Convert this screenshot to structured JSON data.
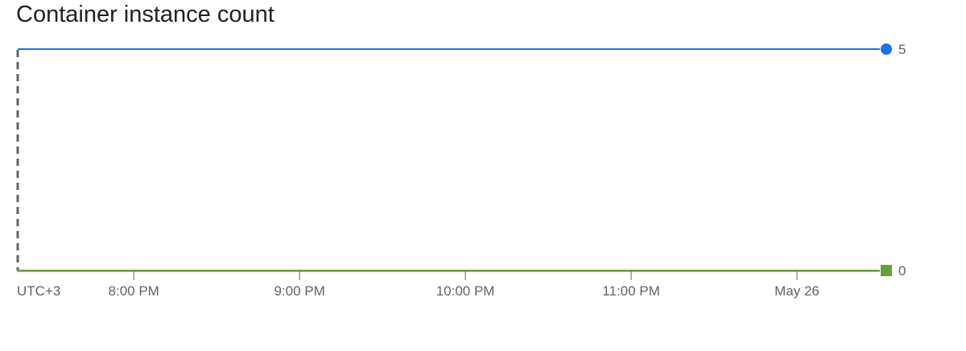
{
  "chart_data": {
    "type": "line",
    "title": "Container instance count",
    "timezone_label": "UTC+3",
    "x_tick_labels": [
      "8:00 PM",
      "9:00 PM",
      "10:00 PM",
      "11:00 PM",
      "May 26"
    ],
    "x": [
      "7:18 PM",
      "12:30 AM"
    ],
    "series": [
      {
        "values": [
          5,
          5
        ],
        "color": "#1a73e8",
        "marker": "circle"
      },
      {
        "values": [
          0,
          0
        ],
        "color": "#689f38",
        "marker": "square"
      }
    ],
    "y_tick_labels": [
      "5",
      "0"
    ],
    "ylim": [
      0,
      5
    ],
    "grid": false,
    "legend": "none"
  }
}
